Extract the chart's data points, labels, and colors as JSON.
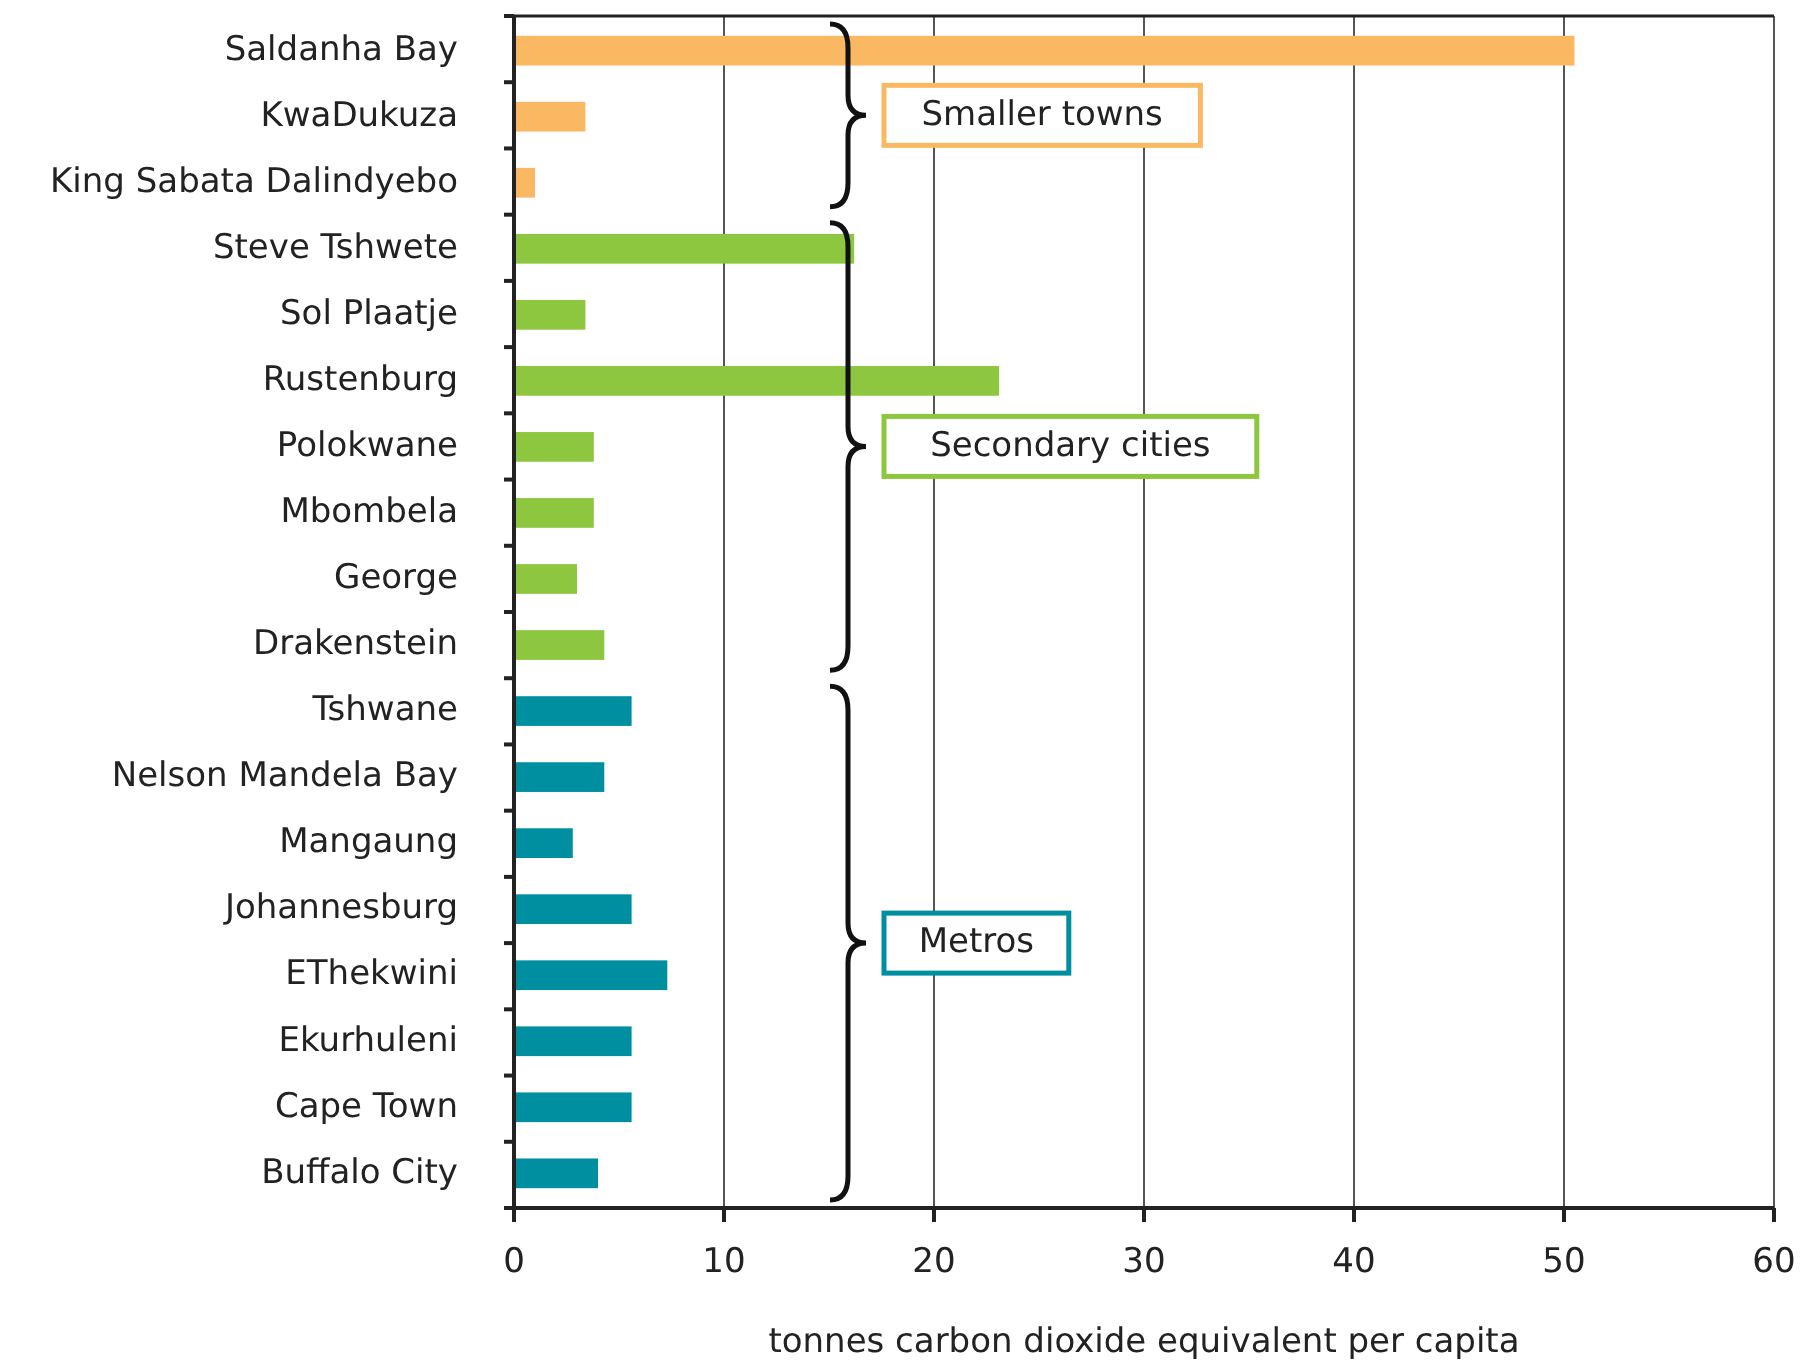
{
  "chart_data": {
    "type": "bar",
    "orientation": "horizontal",
    "categories": [
      "Saldanha Bay",
      "KwaDukuza",
      "King Sabata Dalindyebo",
      "Steve Tshwete",
      "Sol Plaatje",
      "Rustenburg",
      "Polokwane",
      "Mbombela",
      "George",
      "Drakenstein",
      "Tshwane",
      "Nelson Mandela Bay",
      "Mangaung",
      "Johannesburg",
      "EThekwini",
      "Ekurhuleni",
      "Cape Town",
      "Buffalo City"
    ],
    "values": [
      50.5,
      3.4,
      1.0,
      16.2,
      3.4,
      23.1,
      3.8,
      3.8,
      3.0,
      4.3,
      5.6,
      4.3,
      2.8,
      5.6,
      7.3,
      5.6,
      5.6,
      4.0
    ],
    "colors": [
      "#fbb862",
      "#fbb862",
      "#fbb862",
      "#8dc63f",
      "#8dc63f",
      "#8dc63f",
      "#8dc63f",
      "#8dc63f",
      "#8dc63f",
      "#8dc63f",
      "#008fa0",
      "#008fa0",
      "#008fa0",
      "#008fa0",
      "#008fa0",
      "#008fa0",
      "#008fa0",
      "#008fa0"
    ],
    "xlabel": "tonnes carbon dioxide equivalent per capita",
    "xlim": [
      0,
      60
    ],
    "xticks": [
      0,
      10,
      20,
      30,
      40,
      50,
      60
    ],
    "grid": "x",
    "annotations": [
      "Smaller towns",
      "Secondary cities",
      "Metros"
    ]
  }
}
